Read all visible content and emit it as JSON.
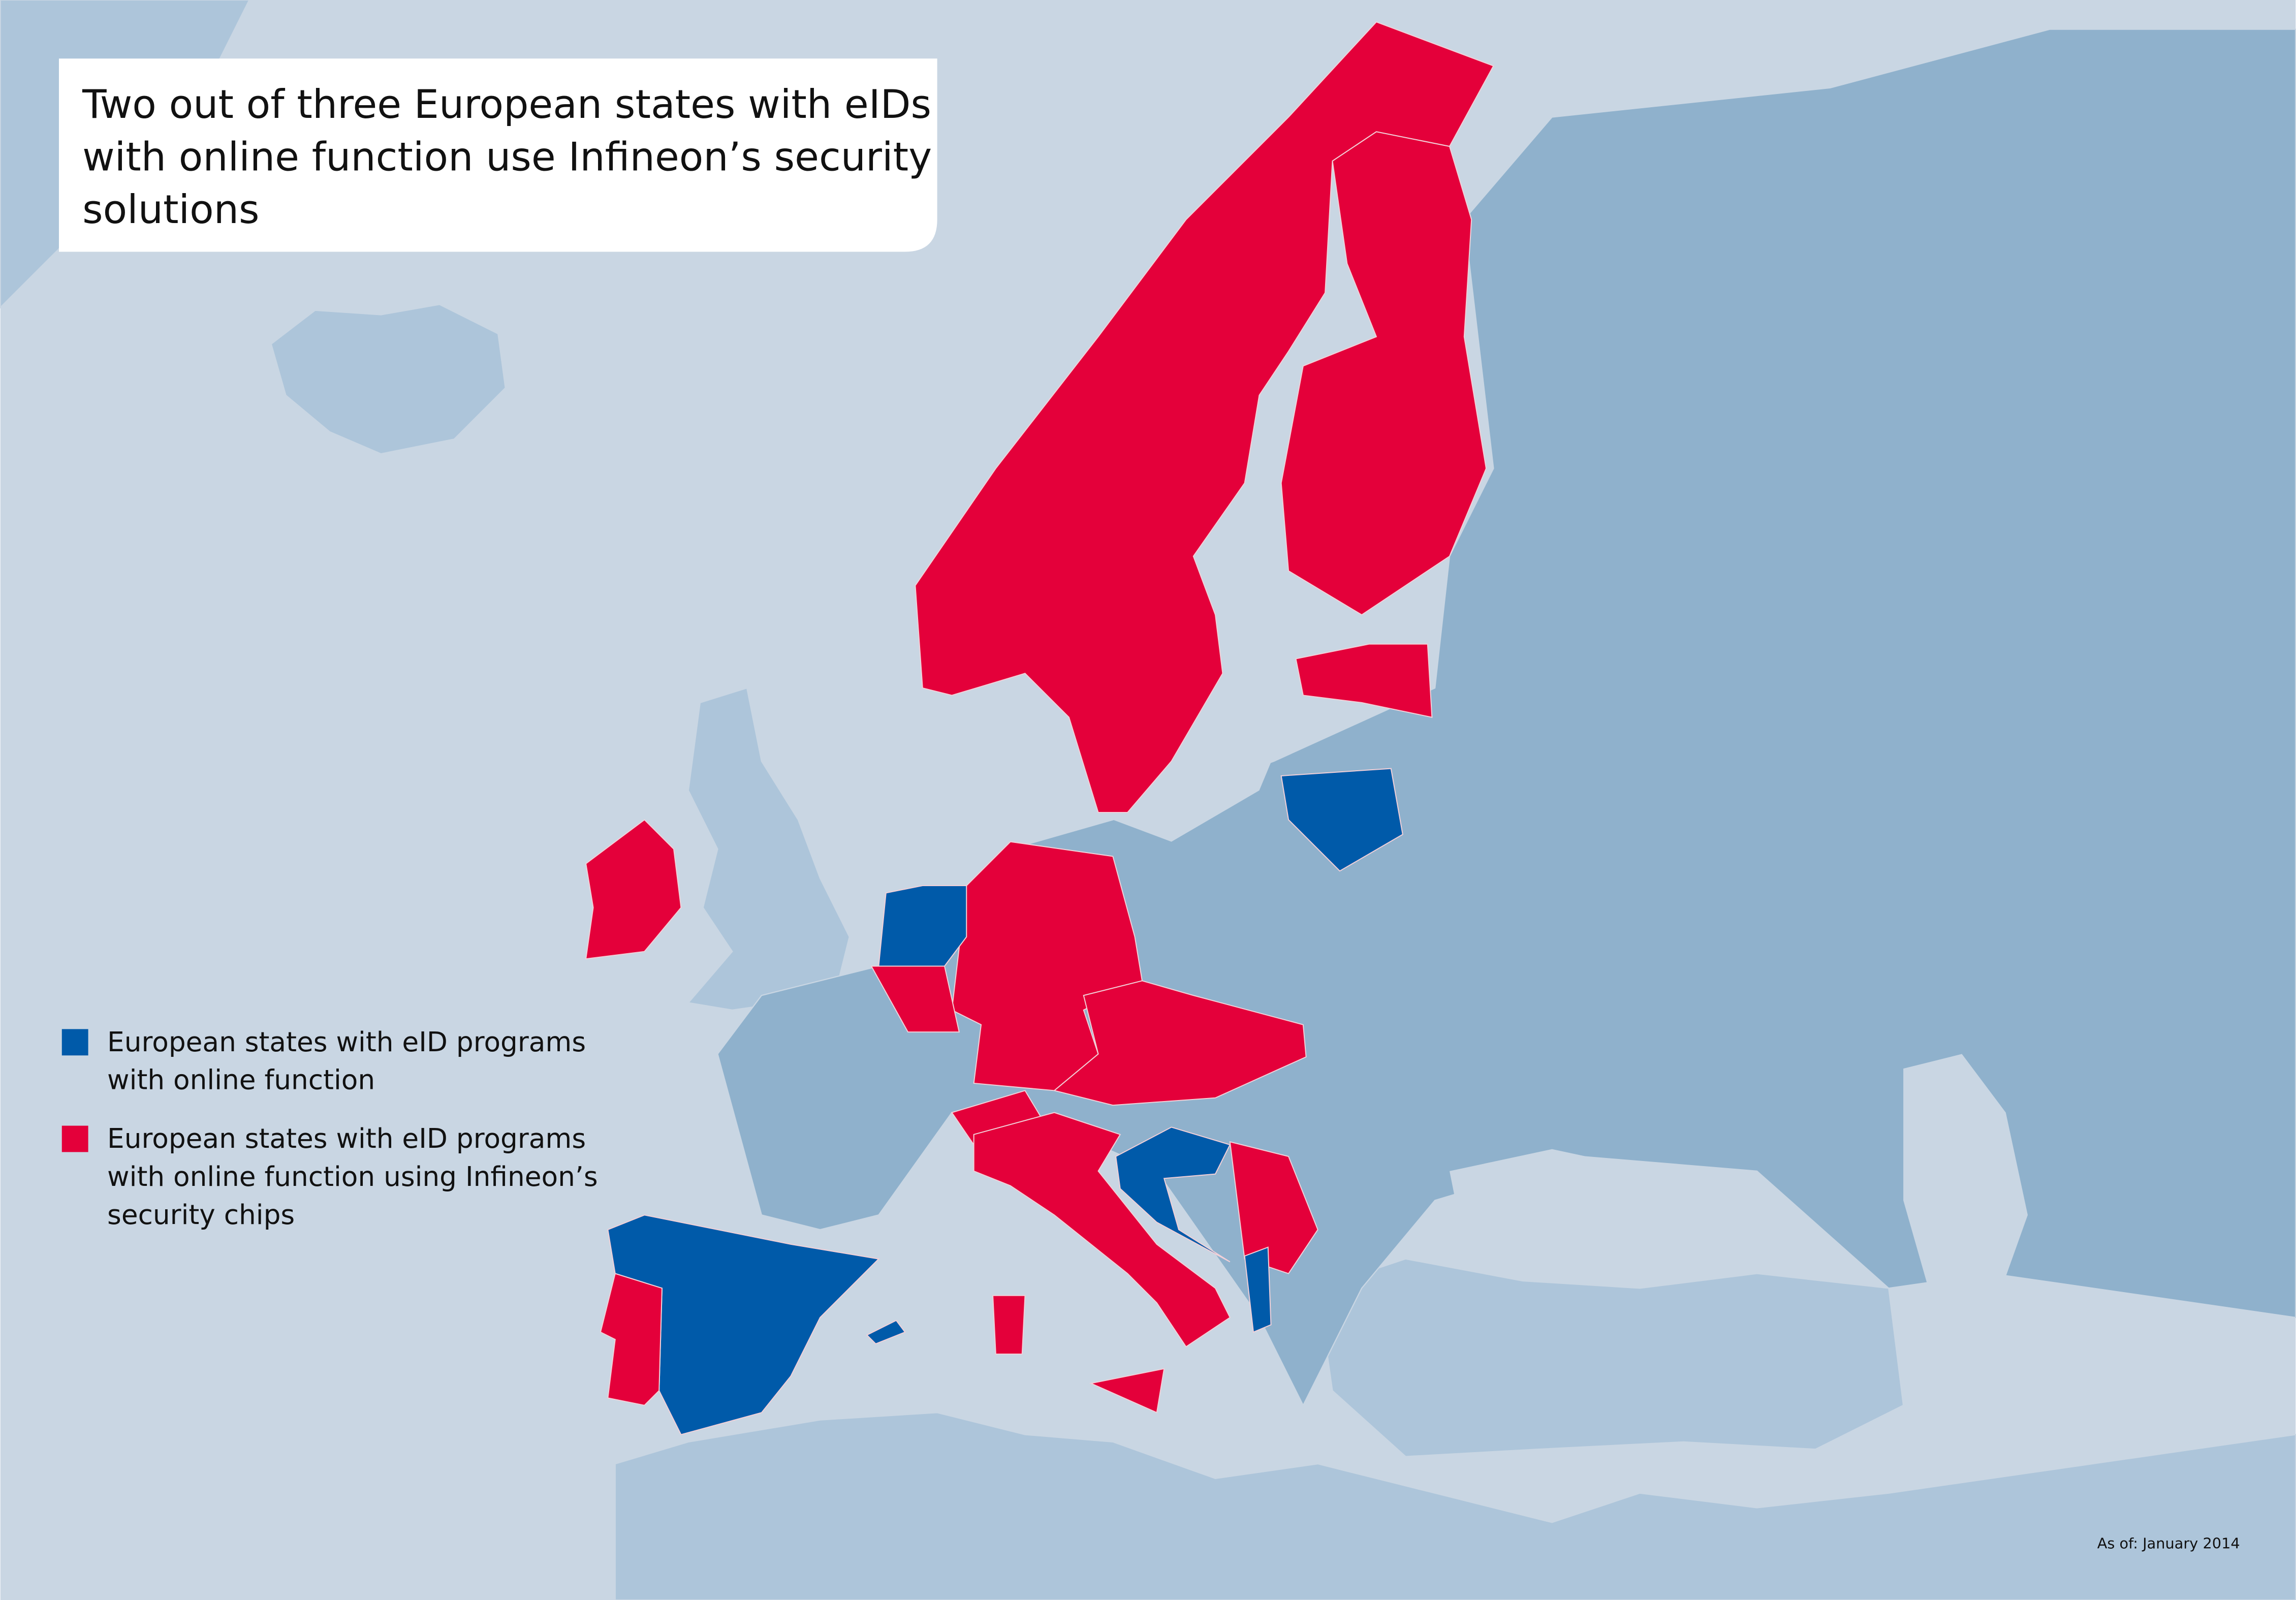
{
  "title": {
    "lines": [
      "Two out of three European states with eIDs",
      "with online function use Infineon’s security",
      "solutions"
    ]
  },
  "legend": {
    "items": [
      {
        "label_lines": [
          "European states with eID programs",
          "with online function"
        ],
        "color": "#005aa9"
      },
      {
        "label_lines": [
          "European states with eID programs",
          "with online function using Infineon’s",
          "security chips"
        ],
        "color": "#e4003a"
      }
    ]
  },
  "note": "As of: January 2014"
}
